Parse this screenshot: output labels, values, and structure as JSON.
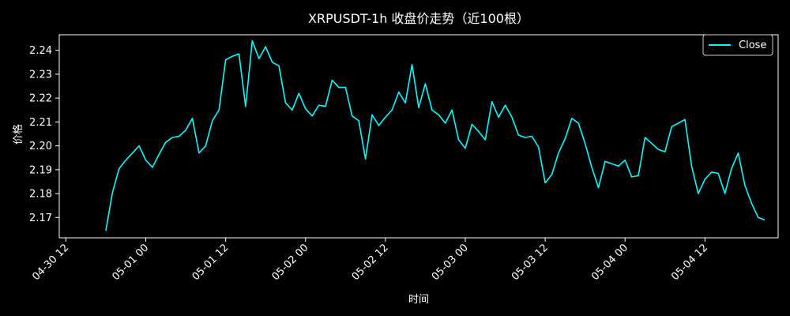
{
  "chart_data": {
    "type": "line",
    "title": "XRPUSDT-1h 收盘价走势（近100根）",
    "xlabel": "时间",
    "ylabel": "价格",
    "x_start": "2025-04-30T18:00",
    "x_step_hours": 1,
    "xlim": [
      "2025-04-30T11:00",
      "2025-05-04T23:00"
    ],
    "ylim": [
      2.1615,
      2.2465
    ],
    "x_ticks": [
      {
        "label": "04-30 12",
        "t": "2025-04-30T12:00"
      },
      {
        "label": "05-01 00",
        "t": "2025-05-01T00:00"
      },
      {
        "label": "05-01 12",
        "t": "2025-05-01T12:00"
      },
      {
        "label": "05-02 00",
        "t": "2025-05-02T00:00"
      },
      {
        "label": "05-02 12",
        "t": "2025-05-02T12:00"
      },
      {
        "label": "05-03 00",
        "t": "2025-05-03T00:00"
      },
      {
        "label": "05-03 12",
        "t": "2025-05-03T12:00"
      },
      {
        "label": "05-04 00",
        "t": "2025-05-04T00:00"
      },
      {
        "label": "05-04 12",
        "t": "2025-05-04T12:00"
      }
    ],
    "y_ticks": [
      2.17,
      2.18,
      2.19,
      2.2,
      2.21,
      2.22,
      2.23,
      2.24
    ],
    "grid": false,
    "legend": "top-right",
    "series": [
      {
        "name": "Close",
        "color": "#00ffff",
        "values": [
          2.1645,
          2.1805,
          2.1905,
          2.194,
          2.197,
          2.2,
          2.194,
          2.191,
          2.1965,
          2.2015,
          2.2035,
          2.204,
          2.2065,
          2.2115,
          2.197,
          2.2,
          2.2105,
          2.215,
          2.236,
          2.2375,
          2.2385,
          2.2165,
          2.244,
          2.2365,
          2.2415,
          2.235,
          2.2335,
          2.218,
          2.215,
          2.222,
          2.2155,
          2.2125,
          2.217,
          2.2165,
          2.2275,
          2.2245,
          2.2245,
          2.2125,
          2.2105,
          2.1945,
          2.213,
          2.2085,
          2.212,
          2.215,
          2.2225,
          2.218,
          2.234,
          2.216,
          2.226,
          2.215,
          2.213,
          2.2095,
          2.215,
          2.2025,
          2.199,
          2.209,
          2.206,
          2.2025,
          2.2185,
          2.212,
          2.217,
          2.212,
          2.2045,
          2.2035,
          2.204,
          2.1995,
          2.1845,
          2.188,
          2.197,
          2.203,
          2.2115,
          2.2095,
          2.201,
          2.191,
          2.1825,
          2.1935,
          2.1925,
          2.1915,
          2.194,
          2.187,
          2.1875,
          2.2035,
          2.201,
          2.1985,
          2.1975,
          2.208,
          2.2095,
          2.211,
          2.1915,
          2.18,
          2.186,
          2.189,
          2.1885,
          2.18,
          2.1905,
          2.197,
          2.1835,
          2.176,
          2.17,
          2.169
        ]
      }
    ]
  }
}
